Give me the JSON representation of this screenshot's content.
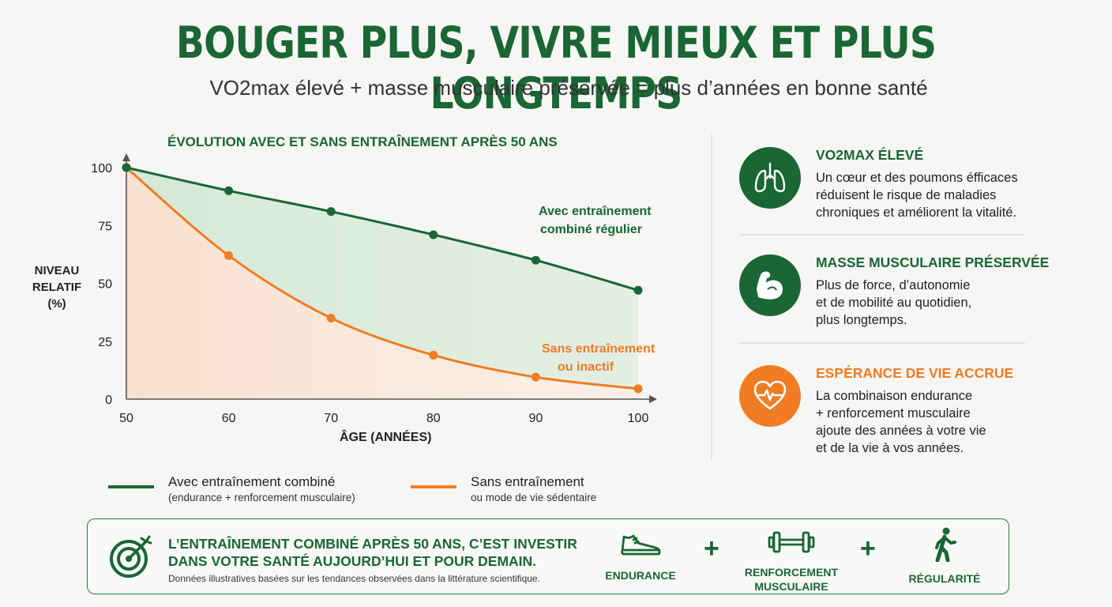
{
  "header": {
    "title": "BOUGER PLUS, VIVRE MIEUX ET PLUS LONGTEMPS",
    "subtitle": "VO2max élevé + masse musculaire préservée = plus d’années en bonne santé"
  },
  "chart_data": {
    "type": "line",
    "title": "ÉVOLUTION AVEC ET SANS ENTRAÎNEMENT APRÈS 50 ANS",
    "xlabel": "ÂGE (ANNÉES)",
    "ylabel_lines": [
      "NIVEAU",
      "RELATIF",
      "(%)"
    ],
    "x": [
      50,
      60,
      70,
      80,
      90,
      100
    ],
    "x_ticks": [
      "50",
      "60",
      "70",
      "80",
      "90",
      "100"
    ],
    "y_ticks": [
      "0",
      "25",
      "50",
      "75",
      "100"
    ],
    "xlim": [
      50,
      100
    ],
    "ylim": [
      0,
      100
    ],
    "grid": false,
    "series": [
      {
        "name": "Avec entraînement combiné régulier",
        "label_lines": [
          "Avec entraînement",
          "combiné régulier"
        ],
        "color": "#1a6634",
        "values": [
          100,
          90,
          81,
          71,
          60,
          47
        ]
      },
      {
        "name": "Sans entraînement ou inactif",
        "label_lines": [
          "Sans entraînement",
          "ou inactif"
        ],
        "color": "#f07c24",
        "values": [
          100,
          62,
          35,
          19,
          9.5,
          4.5
        ]
      }
    ],
    "legend": {
      "placement": "bottom",
      "entries": [
        {
          "line1": "Avec entraînement combiné",
          "line2": "(endurance + renforcement musculaire)",
          "color": "#1a6634"
        },
        {
          "line1": "Sans entraînement",
          "line2": "ou mode de vie sédentaire",
          "color": "#f07c24"
        }
      ]
    }
  },
  "benefits": [
    {
      "icon": "lungs-icon",
      "title": "VO2MAX ÉLEVÉ",
      "lines": [
        "Un cœur et des poumons éfficaces",
        "réduisent le risque de maladies",
        "chroniques et améliorent la vitalité."
      ],
      "color": "#1a6634"
    },
    {
      "icon": "flexed-arm-icon",
      "title": "MASSE MUSCULAIRE PRÉSERVÉE",
      "lines": [
        "Plus de force, d’autonomie",
        "et de mobilité au quotidien,",
        "plus longtemps."
      ],
      "color": "#1a6634"
    },
    {
      "icon": "heart-pulse-icon",
      "title": "ESPÉRANCE DE VIE ACCRUE",
      "lines": [
        "La combinaison endurance",
        "+ renforcement musculaire",
        "ajoute des années à votre vie",
        "et de la vie à vos années."
      ],
      "color": "#f07c24"
    }
  ],
  "banner": {
    "icon": "target-arrow-icon",
    "lines": [
      "L’ENTRAÎNEMENT COMBINÉ APRÈS 50 ANS, C’EST INVESTIR",
      "DANS VOTRE SANTÉ AUJOURD’HUI ET POUR DEMAIN."
    ],
    "note": "Données illustratives basées sur les tendances observées dans la littérature scientifique.",
    "pillars": [
      {
        "icon": "running-shoe-icon",
        "lines": [
          "ENDURANCE"
        ]
      },
      {
        "icon": "dumbbell-icon",
        "lines": [
          "RENFORCEMENT",
          "MUSCULAIRE"
        ]
      },
      {
        "icon": "walking-person-icon",
        "lines": [
          "RÉGULARITÉ"
        ]
      }
    ],
    "plus_sign": "+"
  },
  "colors": {
    "green": "#1a6634",
    "orange": "#f07c24",
    "background": "#f6f6f4"
  }
}
